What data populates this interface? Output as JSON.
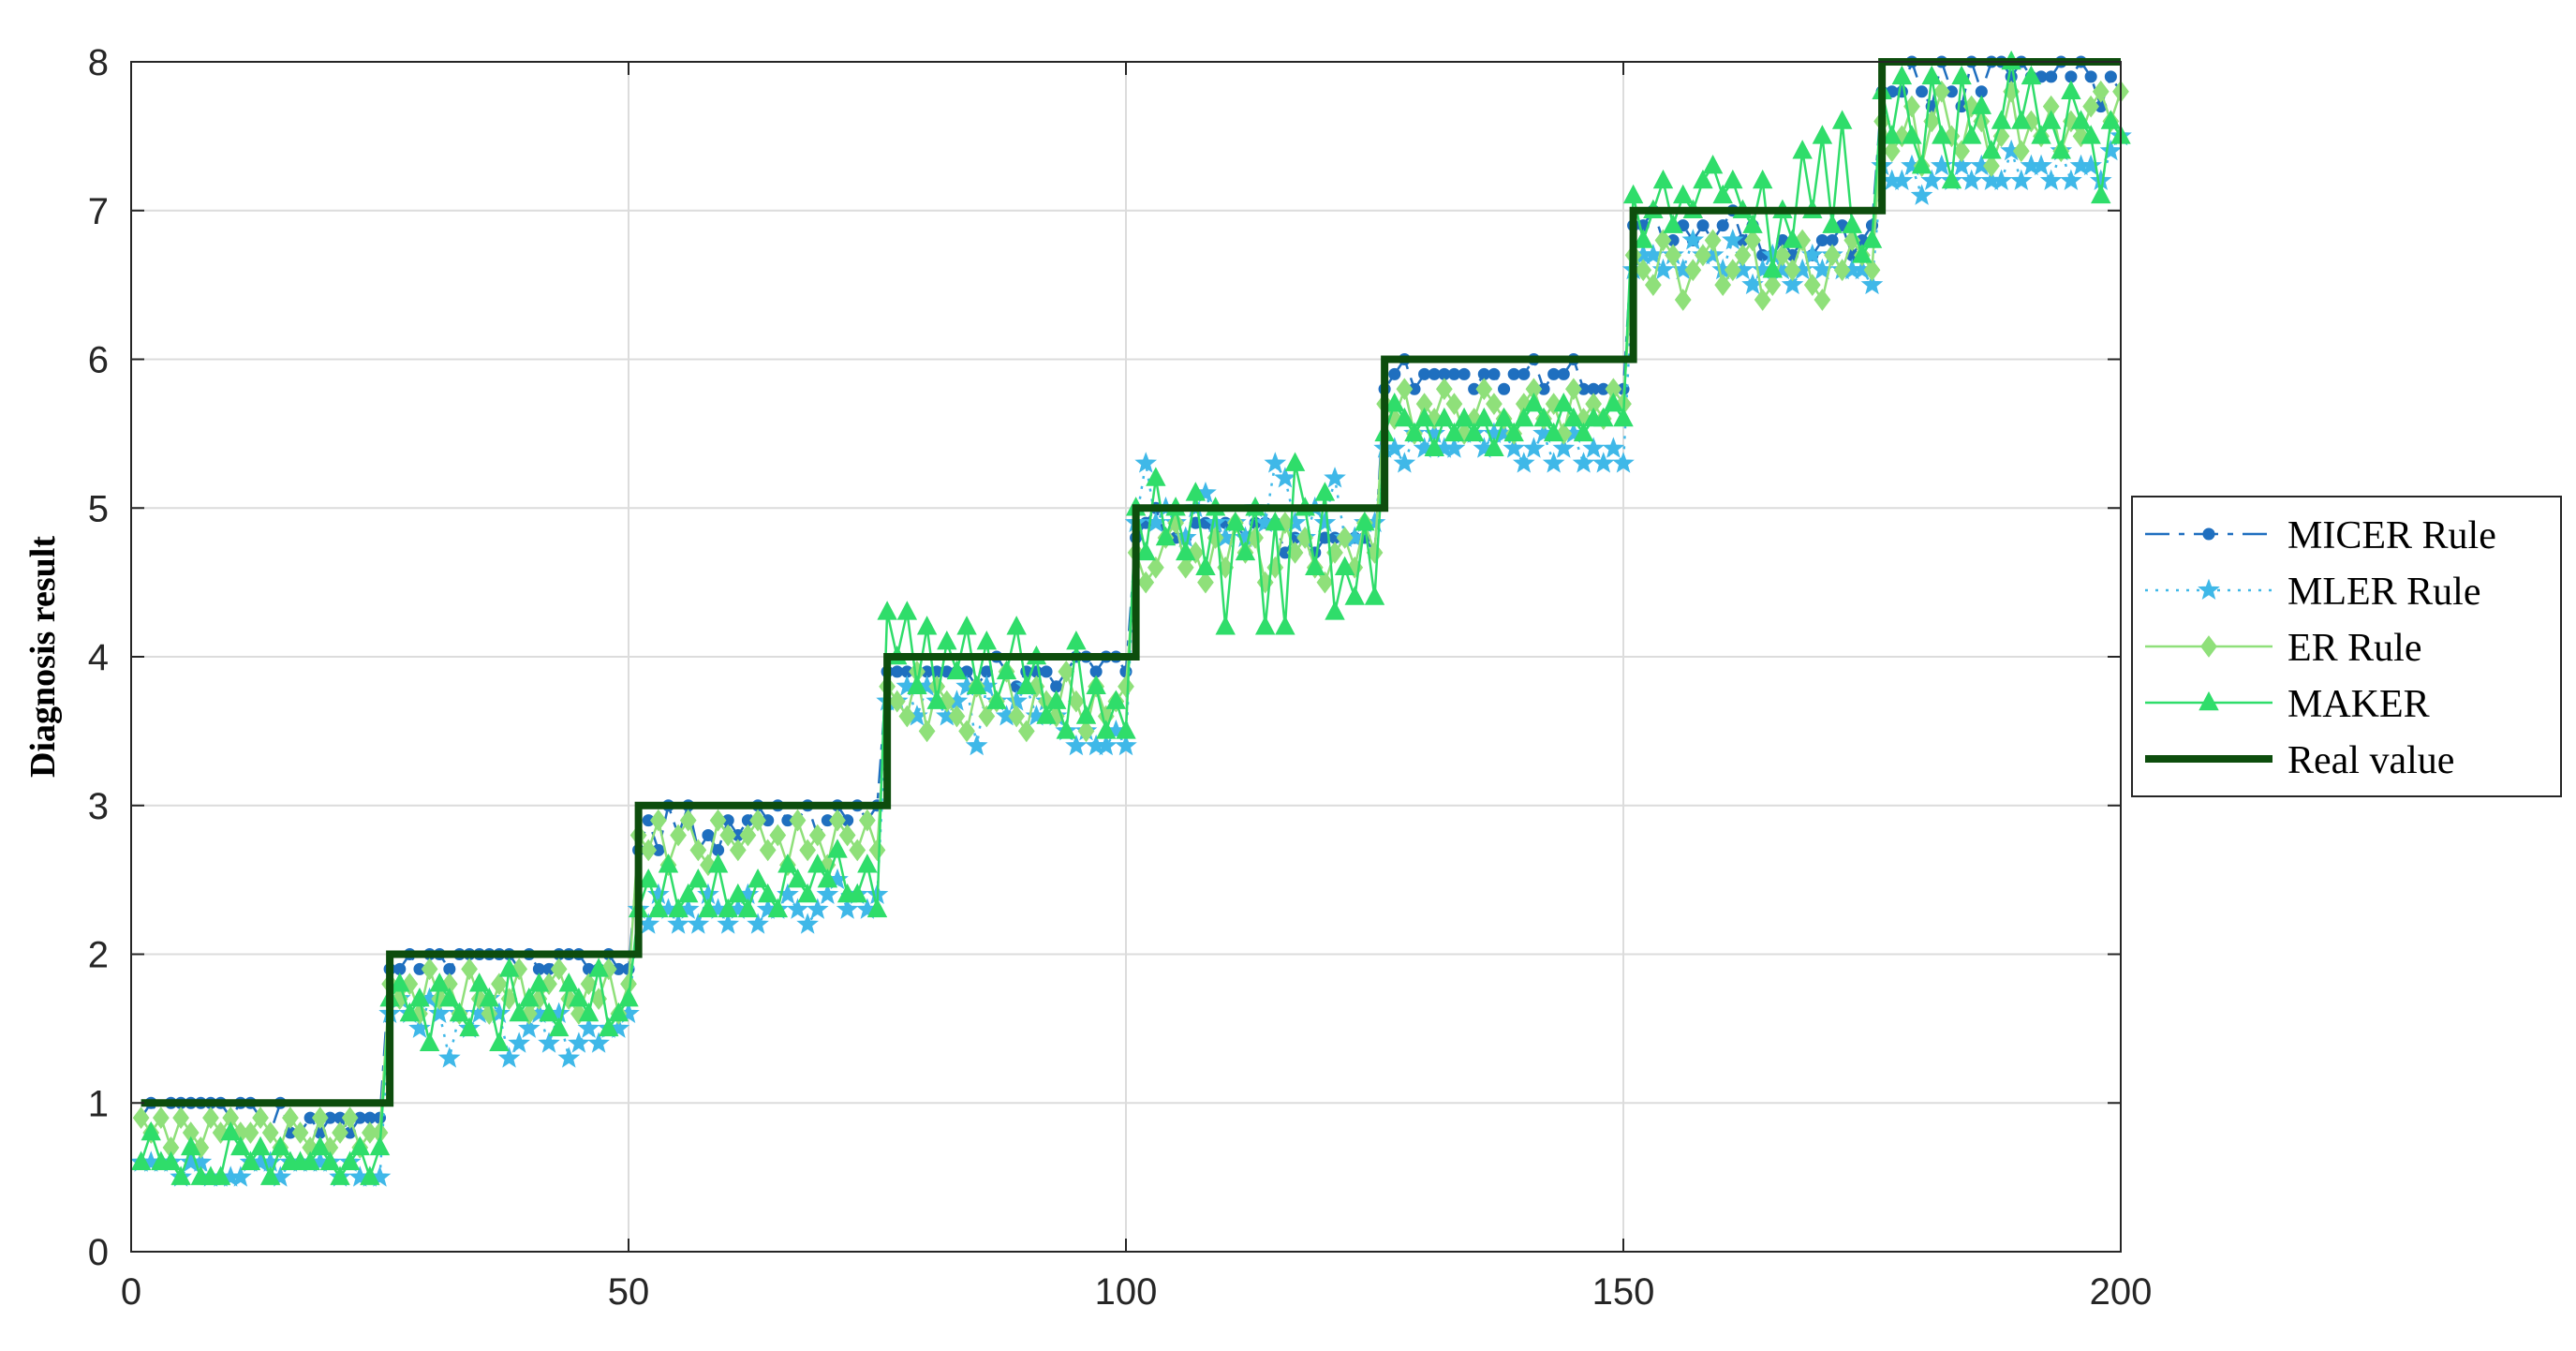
{
  "chart_data": {
    "type": "line",
    "title": "",
    "xlabel": "",
    "ylabel": "Diagnosis result",
    "xlim": [
      0,
      200
    ],
    "ylim": [
      0,
      8
    ],
    "xticks": [
      0,
      50,
      100,
      150,
      200
    ],
    "yticks": [
      0,
      1,
      2,
      3,
      4,
      5,
      6,
      7,
      8
    ],
    "grid": true,
    "legend_position": "right",
    "x": [
      1,
      2,
      3,
      4,
      5,
      6,
      7,
      8,
      9,
      10,
      11,
      12,
      13,
      14,
      15,
      16,
      17,
      18,
      19,
      20,
      21,
      22,
      23,
      24,
      25,
      26,
      27,
      28,
      29,
      30,
      31,
      32,
      33,
      34,
      35,
      36,
      37,
      38,
      39,
      40,
      41,
      42,
      43,
      44,
      45,
      46,
      47,
      48,
      49,
      50,
      51,
      52,
      53,
      54,
      55,
      56,
      57,
      58,
      59,
      60,
      61,
      62,
      63,
      64,
      65,
      66,
      67,
      68,
      69,
      70,
      71,
      72,
      73,
      74,
      75,
      76,
      77,
      78,
      79,
      80,
      81,
      82,
      83,
      84,
      85,
      86,
      87,
      88,
      89,
      90,
      91,
      92,
      93,
      94,
      95,
      96,
      97,
      98,
      99,
      100,
      101,
      102,
      103,
      104,
      105,
      106,
      107,
      108,
      109,
      110,
      111,
      112,
      113,
      114,
      115,
      116,
      117,
      118,
      119,
      120,
      121,
      122,
      123,
      124,
      125,
      126,
      127,
      128,
      129,
      130,
      131,
      132,
      133,
      134,
      135,
      136,
      137,
      138,
      139,
      140,
      141,
      142,
      143,
      144,
      145,
      146,
      147,
      148,
      149,
      150,
      151,
      152,
      153,
      154,
      155,
      156,
      157,
      158,
      159,
      160,
      161,
      162,
      163,
      164,
      165,
      166,
      167,
      168,
      169,
      170,
      171,
      172,
      173,
      174,
      175,
      176,
      177,
      178,
      179,
      180,
      181,
      182,
      183,
      184,
      185,
      186,
      187,
      188,
      189,
      190,
      191,
      192,
      193,
      194,
      195,
      196,
      197,
      198,
      199,
      200
    ],
    "series": [
      {
        "name": "MICER Rule",
        "color": "#1f6fbf",
        "line_style": "dashdot",
        "marker": "circle",
        "values": [
          0.9,
          1.0,
          0.9,
          1.0,
          1.0,
          1.0,
          1.0,
          1.0,
          1.0,
          0.9,
          1.0,
          1.0,
          0.9,
          0.8,
          1.0,
          0.8,
          0.8,
          0.9,
          0.8,
          0.9,
          0.9,
          0.8,
          0.9,
          0.9,
          0.9,
          1.9,
          1.9,
          2.0,
          1.9,
          2.0,
          2.0,
          1.9,
          2.0,
          2.0,
          2.0,
          2.0,
          2.0,
          2.0,
          1.9,
          2.0,
          1.9,
          1.9,
          2.0,
          2.0,
          2.0,
          1.9,
          1.9,
          2.0,
          1.9,
          1.9,
          2.7,
          2.9,
          2.7,
          3.0,
          2.8,
          3.0,
          2.7,
          2.8,
          2.7,
          2.9,
          2.8,
          2.9,
          3.0,
          2.9,
          3.0,
          2.9,
          2.9,
          3.0,
          2.8,
          2.9,
          3.0,
          2.9,
          3.0,
          2.9,
          3.0,
          3.9,
          3.9,
          3.9,
          3.9,
          3.9,
          3.9,
          3.9,
          3.9,
          3.9,
          3.8,
          3.9,
          4.0,
          3.9,
          3.8,
          3.9,
          3.9,
          3.9,
          3.8,
          3.9,
          4.0,
          4.0,
          3.9,
          4.0,
          4.0,
          3.9,
          4.8,
          4.9,
          5.0,
          4.8,
          4.8,
          4.8,
          4.9,
          4.9,
          4.8,
          4.9,
          4.9,
          4.8,
          4.9,
          4.9,
          4.9,
          4.7,
          4.8,
          4.8,
          4.7,
          4.8,
          4.8,
          4.8,
          4.8,
          4.8,
          4.7,
          5.8,
          5.9,
          6.0,
          5.8,
          5.9,
          5.9,
          5.9,
          5.9,
          5.9,
          5.8,
          5.9,
          5.9,
          5.8,
          5.9,
          5.9,
          6.0,
          5.8,
          5.9,
          5.9,
          6.0,
          5.8,
          5.8,
          5.8,
          5.8,
          5.8,
          6.9,
          6.9,
          7.0,
          6.8,
          6.8,
          6.9,
          6.8,
          6.9,
          6.8,
          6.9,
          7.0,
          6.8,
          6.9,
          6.7,
          6.7,
          6.8,
          6.7,
          6.8,
          6.7,
          6.8,
          6.8,
          6.9,
          6.7,
          6.8,
          6.9,
          7.8,
          7.8,
          7.8,
          8.0,
          7.8,
          7.7,
          8.0,
          7.8,
          7.7,
          8.0,
          7.8,
          8.0,
          8.0,
          7.9,
          8.0,
          7.9,
          7.9,
          7.9,
          8.0,
          7.9,
          8.0,
          7.9,
          7.7,
          7.9,
          7.8
        ]
      },
      {
        "name": "MLER Rule",
        "color": "#3fb8e8",
        "line_style": "dotted",
        "marker": "star",
        "values": [
          0.6,
          0.6,
          0.6,
          0.6,
          0.5,
          0.6,
          0.6,
          0.5,
          0.5,
          0.5,
          0.5,
          0.6,
          0.6,
          0.6,
          0.5,
          0.6,
          0.6,
          0.6,
          0.6,
          0.6,
          0.5,
          0.6,
          0.5,
          0.5,
          0.5,
          1.6,
          1.7,
          1.6,
          1.5,
          1.7,
          1.6,
          1.3,
          1.6,
          1.5,
          1.6,
          1.7,
          1.6,
          1.3,
          1.4,
          1.5,
          1.6,
          1.4,
          1.6,
          1.3,
          1.4,
          1.5,
          1.4,
          1.5,
          1.5,
          1.6,
          2.3,
          2.2,
          2.4,
          2.3,
          2.2,
          2.3,
          2.2,
          2.4,
          2.3,
          2.2,
          2.3,
          2.4,
          2.2,
          2.3,
          2.3,
          2.4,
          2.3,
          2.2,
          2.3,
          2.4,
          2.5,
          2.3,
          2.4,
          2.3,
          2.4,
          3.7,
          3.7,
          3.8,
          3.6,
          3.8,
          3.7,
          3.6,
          3.7,
          3.8,
          3.4,
          3.8,
          3.7,
          3.6,
          3.7,
          3.8,
          3.6,
          3.7,
          3.6,
          3.5,
          3.4,
          3.5,
          3.4,
          3.4,
          3.5,
          3.4,
          4.9,
          5.3,
          4.9,
          5.0,
          4.9,
          4.8,
          5.0,
          5.1,
          4.9,
          4.8,
          4.9,
          4.8,
          5.0,
          4.9,
          5.3,
          5.2,
          4.9,
          4.8,
          5.0,
          4.9,
          5.2,
          4.8,
          4.8,
          4.9,
          4.9,
          5.4,
          5.4,
          5.3,
          5.5,
          5.4,
          5.5,
          5.4,
          5.4,
          5.5,
          5.5,
          5.4,
          5.5,
          5.5,
          5.4,
          5.3,
          5.4,
          5.5,
          5.3,
          5.4,
          5.5,
          5.3,
          5.4,
          5.3,
          5.4,
          5.3,
          6.6,
          6.7,
          6.7,
          6.6,
          6.7,
          6.6,
          6.8,
          6.7,
          6.7,
          6.6,
          6.8,
          6.6,
          6.5,
          6.6,
          6.7,
          6.6,
          6.5,
          6.6,
          6.7,
          6.6,
          6.7,
          6.6,
          6.6,
          6.6,
          6.5,
          7.3,
          7.2,
          7.2,
          7.3,
          7.1,
          7.2,
          7.3,
          7.2,
          7.3,
          7.2,
          7.3,
          7.2,
          7.2,
          7.4,
          7.2,
          7.3,
          7.3,
          7.2,
          7.4,
          7.2,
          7.3,
          7.3,
          7.2,
          7.4,
          7.5
        ]
      },
      {
        "name": "ER Rule",
        "color": "#8fe07a",
        "line_style": "solid",
        "marker": "diamond",
        "values": [
          0.9,
          0.8,
          0.9,
          0.7,
          0.9,
          0.8,
          0.7,
          0.9,
          0.8,
          0.9,
          0.8,
          0.8,
          0.9,
          0.8,
          0.7,
          0.9,
          0.8,
          0.7,
          0.9,
          0.7,
          0.8,
          0.9,
          0.7,
          0.8,
          0.8,
          1.8,
          1.7,
          1.8,
          1.6,
          1.9,
          1.7,
          1.8,
          1.6,
          1.9,
          1.7,
          1.6,
          1.8,
          1.7,
          1.9,
          1.6,
          1.7,
          1.8,
          1.9,
          1.7,
          1.6,
          1.8,
          1.7,
          1.9,
          1.6,
          1.8,
          2.8,
          2.7,
          2.9,
          2.6,
          2.8,
          2.9,
          2.7,
          2.6,
          2.9,
          2.8,
          2.7,
          2.8,
          2.9,
          2.7,
          2.8,
          2.6,
          2.9,
          2.7,
          2.8,
          2.6,
          2.9,
          2.8,
          2.7,
          2.9,
          2.7,
          3.8,
          3.7,
          3.6,
          3.9,
          3.5,
          3.8,
          3.7,
          3.6,
          3.5,
          3.8,
          3.6,
          3.7,
          3.9,
          3.6,
          3.5,
          3.8,
          3.7,
          3.6,
          3.9,
          3.7,
          3.5,
          3.8,
          3.6,
          3.7,
          3.8,
          4.7,
          4.5,
          4.6,
          4.8,
          4.9,
          4.6,
          4.7,
          4.5,
          4.8,
          4.6,
          4.9,
          4.7,
          4.8,
          4.5,
          4.6,
          4.9,
          4.7,
          4.8,
          4.6,
          4.5,
          4.7,
          4.8,
          4.6,
          4.9,
          4.7,
          5.7,
          5.6,
          5.8,
          5.5,
          5.7,
          5.6,
          5.8,
          5.7,
          5.5,
          5.6,
          5.8,
          5.7,
          5.6,
          5.5,
          5.7,
          5.8,
          5.6,
          5.7,
          5.5,
          5.8,
          5.6,
          5.7,
          5.6,
          5.8,
          5.7,
          6.7,
          6.6,
          6.5,
          6.8,
          6.7,
          6.4,
          6.6,
          6.7,
          6.8,
          6.5,
          6.6,
          6.7,
          6.8,
          6.4,
          6.5,
          6.7,
          6.6,
          6.8,
          6.5,
          6.4,
          6.7,
          6.6,
          6.8,
          6.7,
          6.6,
          7.6,
          7.4,
          7.5,
          7.7,
          7.3,
          7.6,
          7.8,
          7.5,
          7.4,
          7.7,
          7.6,
          7.3,
          7.5,
          7.8,
          7.4,
          7.6,
          7.5,
          7.7,
          7.4,
          7.6,
          7.5,
          7.7,
          7.8,
          7.6,
          7.8
        ]
      },
      {
        "name": "MAKER",
        "color": "#2fdd6a",
        "line_style": "solid",
        "marker": "triangle",
        "values": [
          0.6,
          0.8,
          0.6,
          0.6,
          0.5,
          0.7,
          0.5,
          0.5,
          0.5,
          0.8,
          0.7,
          0.6,
          0.7,
          0.5,
          0.7,
          0.6,
          0.6,
          0.6,
          0.7,
          0.6,
          0.5,
          0.6,
          0.7,
          0.5,
          0.7,
          1.7,
          1.8,
          1.6,
          1.7,
          1.4,
          1.8,
          1.7,
          1.6,
          1.5,
          1.8,
          1.7,
          1.4,
          1.9,
          1.6,
          1.7,
          1.8,
          1.6,
          1.5,
          1.8,
          1.7,
          1.6,
          1.9,
          1.5,
          1.6,
          1.7,
          2.3,
          2.5,
          2.3,
          2.6,
          2.3,
          2.4,
          2.5,
          2.3,
          2.6,
          2.3,
          2.4,
          2.3,
          2.5,
          2.4,
          2.3,
          2.6,
          2.5,
          2.4,
          2.6,
          2.5,
          2.7,
          2.4,
          2.4,
          2.6,
          2.3,
          4.3,
          4.0,
          4.3,
          3.8,
          4.2,
          3.7,
          4.1,
          3.9,
          4.2,
          3.8,
          4.1,
          3.7,
          3.9,
          4.2,
          3.8,
          4.0,
          3.6,
          3.7,
          3.5,
          4.1,
          3.6,
          3.8,
          3.5,
          3.7,
          3.5,
          5.0,
          4.7,
          5.2,
          4.8,
          5.0,
          4.7,
          5.1,
          4.6,
          5.0,
          4.2,
          4.9,
          4.7,
          5.0,
          4.2,
          4.9,
          4.2,
          5.3,
          5.0,
          4.6,
          5.1,
          4.3,
          4.6,
          4.4,
          4.9,
          4.4,
          5.5,
          5.7,
          5.6,
          5.5,
          5.6,
          5.4,
          5.6,
          5.5,
          5.6,
          5.5,
          5.6,
          5.4,
          5.6,
          5.5,
          5.6,
          5.7,
          5.6,
          5.5,
          5.7,
          5.6,
          5.5,
          5.6,
          5.6,
          5.7,
          5.6,
          7.1,
          6.8,
          7.0,
          7.2,
          6.9,
          7.1,
          7.0,
          7.2,
          7.3,
          7.1,
          7.2,
          7.0,
          6.9,
          7.2,
          6.6,
          7.0,
          6.8,
          7.4,
          7.0,
          7.5,
          6.9,
          7.6,
          6.9,
          6.7,
          6.8,
          7.8,
          7.5,
          7.9,
          7.5,
          7.3,
          7.9,
          7.5,
          7.2,
          7.9,
          7.5,
          7.7,
          7.4,
          7.6,
          8.0,
          7.6,
          7.9,
          7.5,
          7.6,
          7.4,
          7.8,
          7.6,
          7.5,
          7.1,
          7.6,
          7.5
        ]
      },
      {
        "name": "Real value",
        "color": "#0d4d0d",
        "line_style": "solid",
        "marker": "none",
        "values": [
          1,
          1,
          1,
          1,
          1,
          1,
          1,
          1,
          1,
          1,
          1,
          1,
          1,
          1,
          1,
          1,
          1,
          1,
          1,
          1,
          1,
          1,
          1,
          1,
          1,
          2,
          2,
          2,
          2,
          2,
          2,
          2,
          2,
          2,
          2,
          2,
          2,
          2,
          2,
          2,
          2,
          2,
          2,
          2,
          2,
          2,
          2,
          2,
          2,
          2,
          3,
          3,
          3,
          3,
          3,
          3,
          3,
          3,
          3,
          3,
          3,
          3,
          3,
          3,
          3,
          3,
          3,
          3,
          3,
          3,
          3,
          3,
          3,
          3,
          3,
          4,
          4,
          4,
          4,
          4,
          4,
          4,
          4,
          4,
          4,
          4,
          4,
          4,
          4,
          4,
          4,
          4,
          4,
          4,
          4,
          4,
          4,
          4,
          4,
          4,
          5,
          5,
          5,
          5,
          5,
          5,
          5,
          5,
          5,
          5,
          5,
          5,
          5,
          5,
          5,
          5,
          5,
          5,
          5,
          5,
          5,
          5,
          5,
          5,
          5,
          6,
          6,
          6,
          6,
          6,
          6,
          6,
          6,
          6,
          6,
          6,
          6,
          6,
          6,
          6,
          6,
          6,
          6,
          6,
          6,
          6,
          6,
          6,
          6,
          6,
          7,
          7,
          7,
          7,
          7,
          7,
          7,
          7,
          7,
          7,
          7,
          7,
          7,
          7,
          7,
          7,
          7,
          7,
          7,
          7,
          7,
          7,
          7,
          7,
          7,
          8,
          8,
          8,
          8,
          8,
          8,
          8,
          8,
          8,
          8,
          8,
          8,
          8,
          8,
          8,
          8,
          8,
          8,
          8,
          8,
          8,
          8,
          8,
          8,
          8
        ]
      }
    ]
  }
}
